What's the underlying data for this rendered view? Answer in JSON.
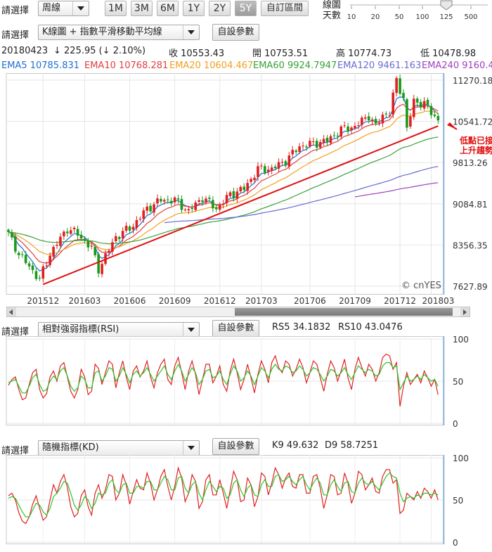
{
  "toolbar": {
    "select_label": "請選擇",
    "period_value": "周線",
    "range_buttons": [
      "1M",
      "3M",
      "6M",
      "1Y",
      "2Y",
      "5Y"
    ],
    "active_range": "5Y",
    "custom_range": "自訂區間",
    "days_label_1": "線圖",
    "days_label_2": "天數",
    "days_ticks": [
      "10",
      "20",
      "50",
      "100",
      "125",
      "500"
    ],
    "days_value": "125"
  },
  "main_chart": {
    "select_label": "請選擇",
    "indicator_value": "K線圖 + 指數平滑移動平均線",
    "settings_label": "自設參數",
    "date": "20180423",
    "change": "↓ 225.95 (↓ 2.10%)",
    "close_label": "收 10553.43",
    "open_label": "開 10753.51",
    "high_label": "高 10774.73",
    "low_label": "低 10478.98",
    "ema_labels": [
      {
        "text": "EMA5 10785.831",
        "color": "#1f6fd1"
      },
      {
        "text": "EMA10 10768.281",
        "color": "#e04040"
      },
      {
        "text": "EMA20 10604.467",
        "color": "#f0a020"
      },
      {
        "text": "EMA60 9924.7947",
        "color": "#3aa03a"
      },
      {
        "text": "EMA120 9461.163",
        "color": "#6a6ad6"
      },
      {
        "text": "EMA240 9160.4",
        "color": "#a040c0"
      }
    ],
    "annotation_line1": "低點已接近",
    "annotation_line2": "上升趨勢線",
    "watermark": "© cnYES"
  },
  "rsi_panel": {
    "select_label": "請選擇",
    "indicator_value": "相對強弱指標(RSI)",
    "settings_label": "自設參數",
    "rs5_label": "RS5 34.1832",
    "rs10_label": "RS10 43.0476"
  },
  "kd_panel": {
    "select_label": "請選擇",
    "indicator_value": "隨機指標(KD)",
    "settings_label": "自設參數",
    "k_label": "K9 49.632",
    "d_label": "D9 58.7251"
  },
  "colors": {
    "up": "#e02020",
    "down": "#1a9a1a",
    "trendline": "#e01010",
    "ema5": "#1f6fd1",
    "ema10": "#e04040",
    "ema20": "#f0a020",
    "ema60": "#3aa03a",
    "ema120": "#6a6ad6",
    "ema240": "#a040c0"
  },
  "chart_data": [
    {
      "type": "candlestick",
      "x_tick_labels": [
        "201512",
        "201603",
        "201606",
        "201609",
        "201612",
        "201703",
        "201706",
        "201709",
        "201712",
        "201803"
      ],
      "y_tick_labels": [
        "11270.18",
        "10541.72",
        "9813.26",
        "9084.81",
        "8356.35",
        "7627.89"
      ],
      "ylim": [
        7627.89,
        11270.18
      ],
      "weeks": 125,
      "anchors": [
        [
          0,
          8550
        ],
        [
          3,
          8200
        ],
        [
          9,
          7750
        ],
        [
          12,
          8200
        ],
        [
          17,
          8650
        ],
        [
          20,
          8550
        ],
        [
          24,
          8300
        ],
        [
          26,
          7930
        ],
        [
          31,
          8500
        ],
        [
          36,
          8700
        ],
        [
          40,
          9000
        ],
        [
          44,
          9150
        ],
        [
          48,
          9150
        ],
        [
          52,
          8950
        ],
        [
          56,
          9200
        ],
        [
          60,
          9000
        ],
        [
          64,
          9250
        ],
        [
          68,
          9350
        ],
        [
          72,
          9700
        ],
        [
          76,
          9700
        ],
        [
          80,
          9850
        ],
        [
          84,
          10100
        ],
        [
          88,
          10150
        ],
        [
          92,
          10200
        ],
        [
          96,
          10400
        ],
        [
          100,
          10450
        ],
        [
          104,
          10650
        ],
        [
          106,
          10450
        ],
        [
          108,
          10650
        ],
        [
          110,
          10700
        ],
        [
          112,
          11270
        ],
        [
          114,
          10950
        ],
        [
          115,
          10400
        ],
        [
          117,
          10900
        ],
        [
          120,
          10850
        ],
        [
          124,
          10560
        ]
      ],
      "trendline": {
        "from": [
          10,
          7660
        ],
        "to": [
          124,
          10460
        ]
      },
      "annotation": "低點已接近上升趨勢線"
    },
    {
      "type": "line",
      "name": "RSI",
      "y_tick_labels": [
        "100",
        "50",
        "0"
      ],
      "ylim": [
        0,
        100
      ],
      "series": [
        {
          "name": "RS5",
          "values": [
            45,
            52,
            55,
            40,
            28,
            30,
            46,
            60,
            64,
            40,
            30,
            35,
            55,
            62,
            50,
            68,
            72,
            55,
            38,
            30,
            40,
            64,
            55,
            34,
            38,
            70,
            65,
            46,
            60,
            74,
            70,
            42,
            60,
            74,
            55,
            40,
            62,
            68,
            55,
            62,
            74,
            55,
            42,
            60,
            70,
            76,
            52,
            46,
            68,
            78,
            60,
            40,
            62,
            74,
            58,
            34,
            52,
            70,
            70,
            48,
            56,
            68,
            46,
            38,
            62,
            76,
            60,
            40,
            52,
            70,
            54,
            36,
            58,
            74,
            64,
            48,
            72,
            80,
            66,
            60,
            74,
            70,
            56,
            64,
            76,
            66,
            48,
            60,
            74,
            70,
            54,
            38,
            58,
            74,
            66,
            50,
            62,
            76,
            54,
            40,
            64,
            78,
            66,
            56,
            70,
            64,
            50,
            60,
            78,
            82,
            80,
            64,
            72,
            20,
            44,
            60,
            46,
            52,
            58,
            48,
            62,
            54,
            44,
            52,
            34
          ]
        },
        {
          "name": "RS10",
          "values": [
            48,
            50,
            52,
            44,
            36,
            36,
            44,
            54,
            58,
            46,
            38,
            40,
            50,
            56,
            52,
            62,
            66,
            56,
            44,
            38,
            42,
            56,
            52,
            42,
            42,
            60,
            62,
            50,
            56,
            66,
            64,
            50,
            56,
            66,
            58,
            48,
            58,
            62,
            56,
            60,
            66,
            58,
            50,
            56,
            62,
            68,
            58,
            52,
            62,
            70,
            62,
            50,
            58,
            66,
            60,
            46,
            52,
            62,
            64,
            54,
            56,
            62,
            52,
            46,
            58,
            68,
            62,
            50,
            54,
            62,
            56,
            46,
            56,
            66,
            62,
            54,
            64,
            70,
            64,
            62,
            68,
            66,
            60,
            62,
            68,
            64,
            56,
            60,
            66,
            64,
            58,
            50,
            56,
            64,
            62,
            56,
            60,
            66,
            58,
            52,
            60,
            68,
            64,
            60,
            64,
            62,
            56,
            58,
            68,
            72,
            72,
            66,
            68,
            40,
            48,
            56,
            50,
            52,
            56,
            52,
            58,
            54,
            50,
            52,
            44
          ]
        }
      ]
    },
    {
      "type": "line",
      "name": "KD",
      "y_tick_labels": [
        "100",
        "50",
        "0"
      ],
      "ylim": [
        0,
        100
      ],
      "series": [
        {
          "name": "K9",
          "values": [
            55,
            58,
            50,
            35,
            25,
            22,
            30,
            45,
            55,
            40,
            26,
            30,
            50,
            68,
            58,
            72,
            80,
            65,
            42,
            30,
            34,
            55,
            62,
            42,
            32,
            58,
            68,
            52,
            62,
            80,
            78,
            50,
            58,
            80,
            68,
            45,
            60,
            74,
            64,
            62,
            82,
            70,
            50,
            62,
            78,
            86,
            66,
            50,
            66,
            88,
            76,
            48,
            58,
            80,
            72,
            40,
            48,
            74,
            80,
            56,
            56,
            74,
            58,
            40,
            62,
            84,
            74,
            48,
            50,
            76,
            68,
            42,
            54,
            82,
            78,
            56,
            70,
            88,
            80,
            64,
            76,
            82,
            66,
            64,
            80,
            80,
            58,
            58,
            78,
            80,
            64,
            40,
            56,
            80,
            78,
            56,
            58,
            82,
            70,
            46,
            58,
            84,
            80,
            62,
            68,
            76,
            60,
            58,
            78,
            86,
            86,
            70,
            74,
            34,
            38,
            58,
            54,
            50,
            60,
            52,
            64,
            60,
            52,
            62,
            50
          ]
        },
        {
          "name": "D9",
          "values": [
            52,
            54,
            52,
            44,
            36,
            30,
            30,
            38,
            46,
            44,
            36,
            32,
            40,
            54,
            58,
            64,
            72,
            70,
            58,
            44,
            38,
            44,
            54,
            50,
            40,
            46,
            58,
            56,
            58,
            70,
            74,
            62,
            58,
            68,
            70,
            58,
            58,
            66,
            66,
            64,
            72,
            72,
            62,
            62,
            70,
            78,
            74,
            62,
            62,
            76,
            78,
            64,
            58,
            68,
            72,
            58,
            50,
            62,
            72,
            66,
            60,
            66,
            64,
            52,
            56,
            70,
            74,
            62,
            54,
            64,
            68,
            56,
            54,
            68,
            74,
            66,
            66,
            78,
            80,
            72,
            74,
            78,
            72,
            68,
            74,
            78,
            68,
            62,
            70,
            76,
            70,
            56,
            56,
            68,
            74,
            66,
            60,
            70,
            72,
            60,
            58,
            70,
            76,
            70,
            68,
            72,
            66,
            62,
            70,
            78,
            82,
            78,
            76,
            58,
            48,
            52,
            54,
            52,
            56,
            54,
            58,
            58,
            56,
            58,
            56
          ]
        }
      ]
    }
  ]
}
